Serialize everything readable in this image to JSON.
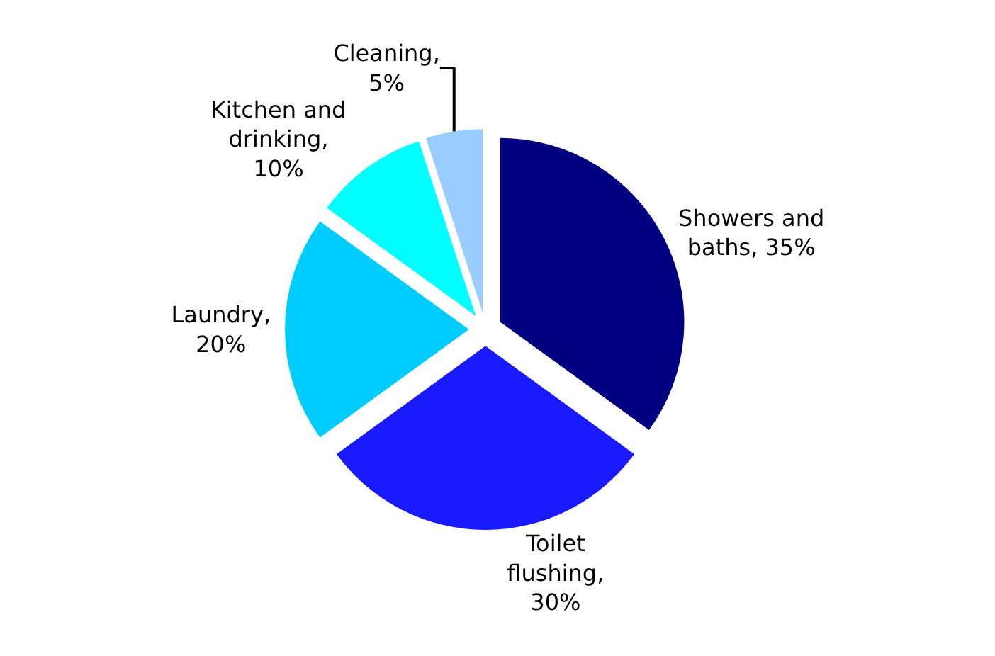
{
  "chart_data": {
    "type": "pie",
    "categories": [
      "Showers and baths, 35%",
      "Toilet flushing, 30%",
      "Laundry, 20%",
      "Kitchen and drinking, 10%",
      "Cleaning, 5%"
    ],
    "values": [
      35,
      30,
      20,
      10,
      5
    ],
    "colors": [
      "#000080",
      "#1a1aff",
      "#00ccff",
      "#00ffff",
      "#99ccff"
    ],
    "legend": false
  }
}
